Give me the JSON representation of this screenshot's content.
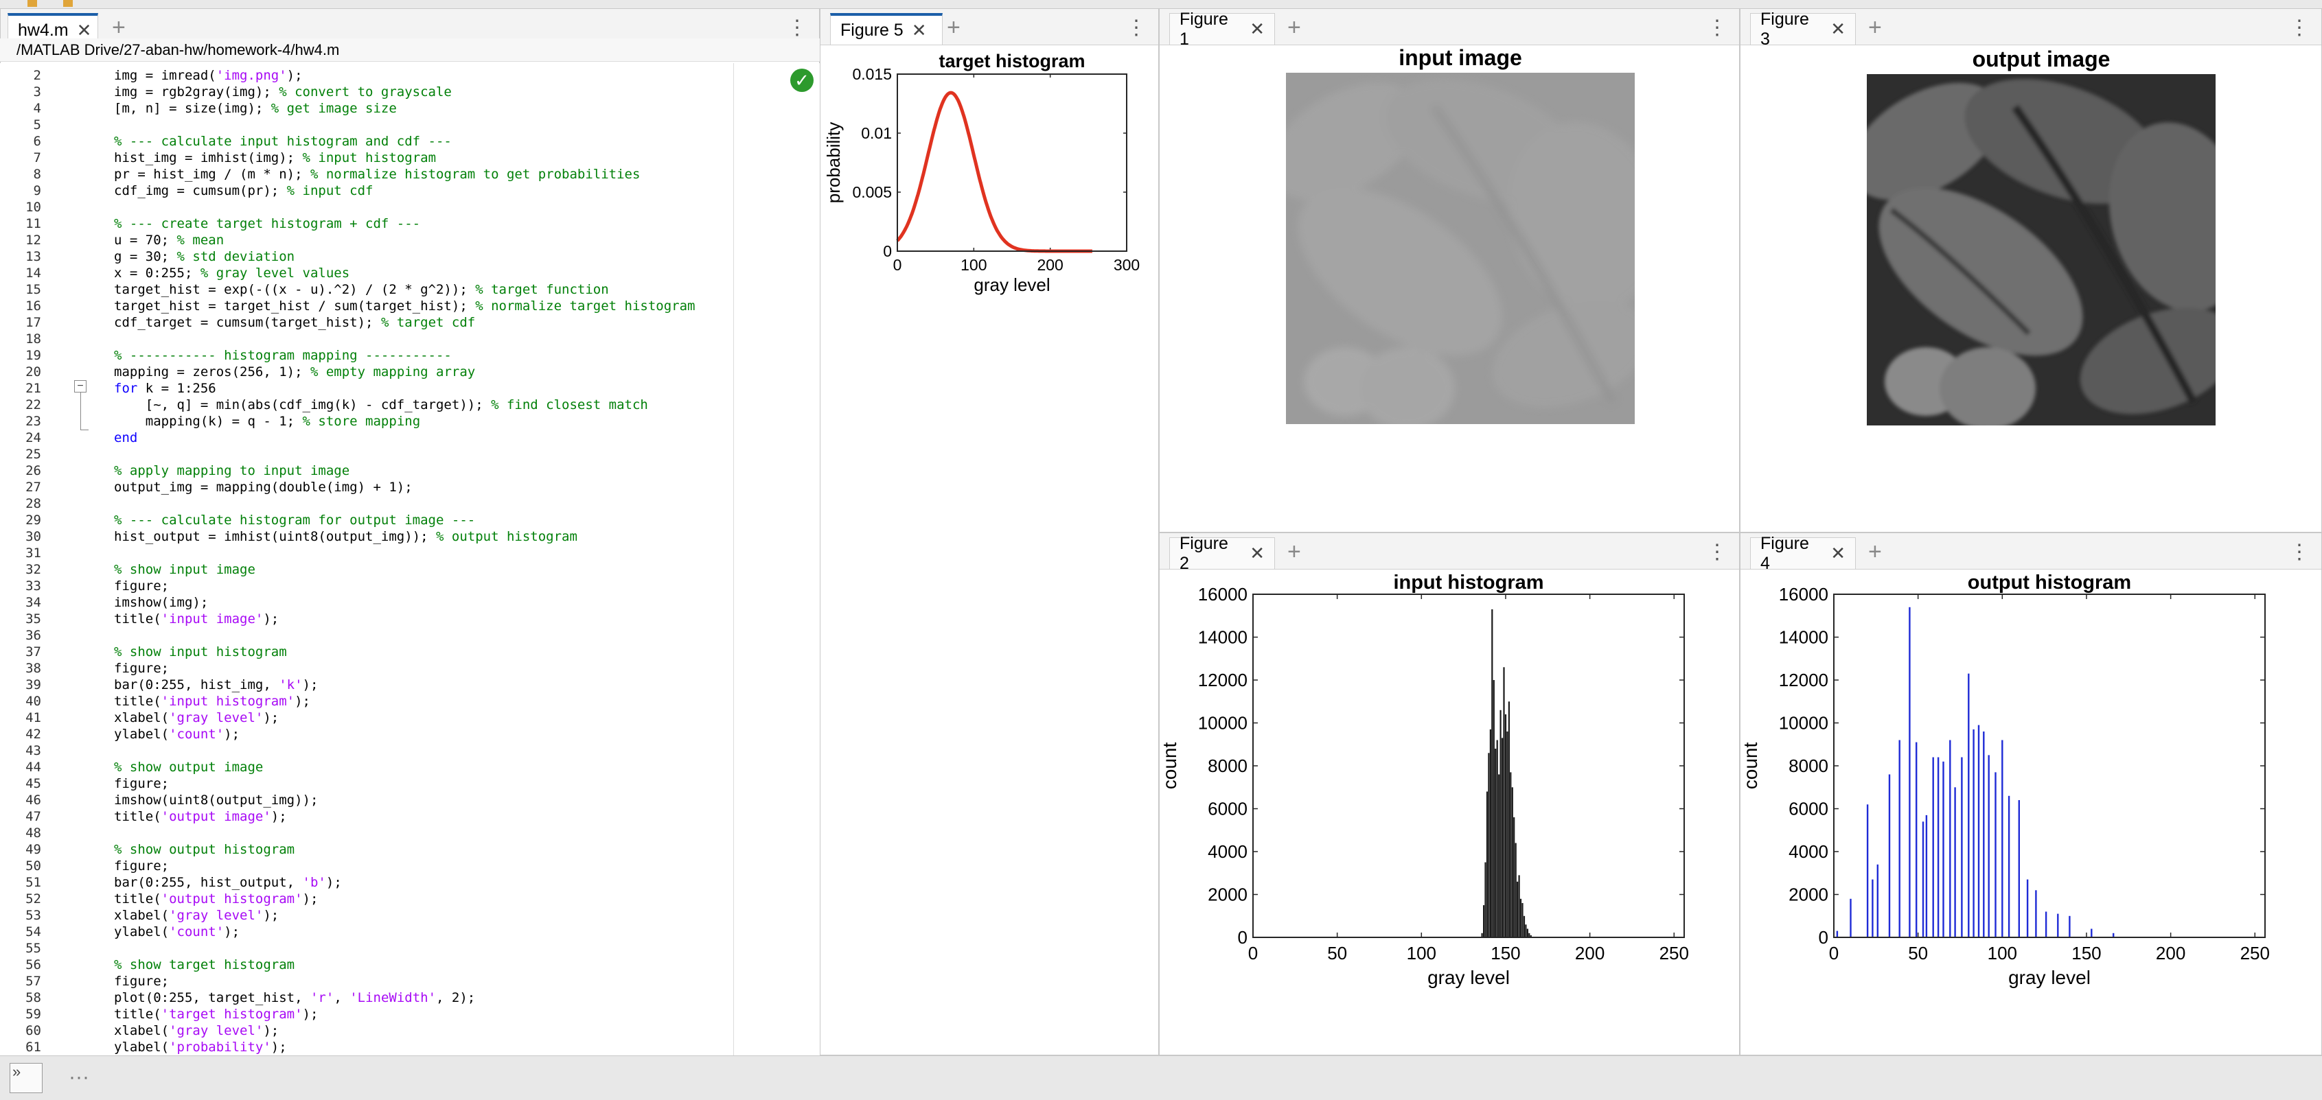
{
  "editor": {
    "tab_label": "hw4.m",
    "breadcrumb": "/MATLAB Drive/27-aban-hw/homework-4/hw4.m",
    "start_line": 2,
    "lines": [
      [
        [
          "n",
          "img = imread("
        ],
        [
          "s",
          "'img.png'"
        ],
        [
          "n",
          ");"
        ]
      ],
      [
        [
          "n",
          "img = rgb2gray(img); "
        ],
        [
          "c",
          "% convert to grayscale"
        ]
      ],
      [
        [
          "n",
          "[m, n] = size(img); "
        ],
        [
          "c",
          "% get image size"
        ]
      ],
      [],
      [
        [
          "c",
          "% --- calculate input histogram and cdf ---"
        ]
      ],
      [
        [
          "n",
          "hist_img = imhist(img); "
        ],
        [
          "c",
          "% input histogram"
        ]
      ],
      [
        [
          "n",
          "pr = hist_img / (m * n); "
        ],
        [
          "c",
          "% normalize histogram to get probabilities"
        ]
      ],
      [
        [
          "n",
          "cdf_img = cumsum(pr); "
        ],
        [
          "c",
          "% input cdf"
        ]
      ],
      [],
      [
        [
          "c",
          "% --- create target histogram + cdf ---"
        ]
      ],
      [
        [
          "n",
          "u = 70; "
        ],
        [
          "c",
          "% mean"
        ]
      ],
      [
        [
          "n",
          "g = 30; "
        ],
        [
          "c",
          "% std deviation"
        ]
      ],
      [
        [
          "n",
          "x = 0:255; "
        ],
        [
          "c",
          "% gray level values"
        ]
      ],
      [
        [
          "n",
          "target_hist = exp(-((x - u).^2) / (2 * g^2)); "
        ],
        [
          "c",
          "% target function"
        ]
      ],
      [
        [
          "n",
          "target_hist = target_hist / sum(target_hist); "
        ],
        [
          "c",
          "% normalize target histogram"
        ]
      ],
      [
        [
          "n",
          "cdf_target = cumsum(target_hist); "
        ],
        [
          "c",
          "% target cdf"
        ]
      ],
      [],
      [
        [
          "c",
          "% ----------- histogram mapping -----------"
        ]
      ],
      [
        [
          "n",
          "mapping = zeros(256, 1); "
        ],
        [
          "c",
          "% empty mapping array"
        ]
      ],
      [
        [
          "k",
          "for"
        ],
        [
          "n",
          " k = 1:256"
        ]
      ],
      [
        [
          "n",
          "    [~, q] = min(abs(cdf_img(k) - cdf_target)); "
        ],
        [
          "c",
          "% find closest match"
        ]
      ],
      [
        [
          "n",
          "    mapping(k) = q - 1; "
        ],
        [
          "c",
          "% store mapping"
        ]
      ],
      [
        [
          "k",
          "end"
        ]
      ],
      [],
      [
        [
          "c",
          "% apply mapping to input image"
        ]
      ],
      [
        [
          "n",
          "output_img = mapping(double(img) + 1);"
        ]
      ],
      [],
      [
        [
          "c",
          "% --- calculate histogram for output image ---"
        ]
      ],
      [
        [
          "n",
          "hist_output = imhist(uint8(output_img)); "
        ],
        [
          "c",
          "% output histogram"
        ]
      ],
      [],
      [
        [
          "c",
          "% show input image"
        ]
      ],
      [
        [
          "n",
          "figure;"
        ]
      ],
      [
        [
          "n",
          "imshow(img);"
        ]
      ],
      [
        [
          "n",
          "title("
        ],
        [
          "s",
          "'input image'"
        ],
        [
          "n",
          ");"
        ]
      ],
      [],
      [
        [
          "c",
          "% show input histogram"
        ]
      ],
      [
        [
          "n",
          "figure;"
        ]
      ],
      [
        [
          "n",
          "bar(0:255, hist_img, "
        ],
        [
          "s",
          "'k'"
        ],
        [
          "n",
          ");"
        ]
      ],
      [
        [
          "n",
          "title("
        ],
        [
          "s",
          "'input histogram'"
        ],
        [
          "n",
          ");"
        ]
      ],
      [
        [
          "n",
          "xlabel("
        ],
        [
          "s",
          "'gray level'"
        ],
        [
          "n",
          ");"
        ]
      ],
      [
        [
          "n",
          "ylabel("
        ],
        [
          "s",
          "'count'"
        ],
        [
          "n",
          ");"
        ]
      ],
      [],
      [
        [
          "c",
          "% show output image"
        ]
      ],
      [
        [
          "n",
          "figure;"
        ]
      ],
      [
        [
          "n",
          "imshow(uint8(output_img));"
        ]
      ],
      [
        [
          "n",
          "title("
        ],
        [
          "s",
          "'output image'"
        ],
        [
          "n",
          ");"
        ]
      ],
      [],
      [
        [
          "c",
          "% show output histogram"
        ]
      ],
      [
        [
          "n",
          "figure;"
        ]
      ],
      [
        [
          "n",
          "bar(0:255, hist_output, "
        ],
        [
          "s",
          "'b'"
        ],
        [
          "n",
          ");"
        ]
      ],
      [
        [
          "n",
          "title("
        ],
        [
          "s",
          "'output histogram'"
        ],
        [
          "n",
          ");"
        ]
      ],
      [
        [
          "n",
          "xlabel("
        ],
        [
          "s",
          "'gray level'"
        ],
        [
          "n",
          ");"
        ]
      ],
      [
        [
          "n",
          "ylabel("
        ],
        [
          "s",
          "'count'"
        ],
        [
          "n",
          ");"
        ]
      ],
      [],
      [
        [
          "c",
          "% show target histogram"
        ]
      ],
      [
        [
          "n",
          "figure;"
        ]
      ],
      [
        [
          "n",
          "plot(0:255, target_hist, "
        ],
        [
          "s",
          "'r'"
        ],
        [
          "n",
          ", "
        ],
        [
          "s",
          "'LineWidth'"
        ],
        [
          "n",
          ", 2);"
        ]
      ],
      [
        [
          "n",
          "title("
        ],
        [
          "s",
          "'target histogram'"
        ],
        [
          "n",
          ");"
        ]
      ],
      [
        [
          "n",
          "xlabel("
        ],
        [
          "s",
          "'gray level'"
        ],
        [
          "n",
          ");"
        ]
      ],
      [
        [
          "n",
          "ylabel("
        ],
        [
          "s",
          "'probability'"
        ],
        [
          "n",
          ");"
        ]
      ]
    ]
  },
  "figures": {
    "fig5": {
      "tab_label": "Figure 5"
    },
    "fig1": {
      "tab_label": "Figure 1"
    },
    "fig3": {
      "tab_label": "Figure 3"
    },
    "fig2": {
      "tab_label": "Figure 2"
    },
    "fig4": {
      "tab_label": "Figure 4"
    }
  },
  "images": {
    "input_title": "input image",
    "output_title": "output image"
  },
  "colors": {
    "target_line": "#e03320",
    "input_bars": "#1a1a1a",
    "output_bars": "#1f2bd6",
    "comment": "#028009",
    "keyword": "#0e00ff",
    "string": "#a709f5"
  },
  "chart_data": [
    {
      "id": "target",
      "type": "line",
      "title": "target histogram",
      "xlabel": "gray level",
      "ylabel": "probability",
      "xlim": [
        0,
        300
      ],
      "ylim": [
        0,
        0.015
      ],
      "xticks": [
        0,
        100,
        200,
        300
      ],
      "yticks": [
        0,
        0.005,
        0.01,
        0.015
      ],
      "ytick_labels": [
        "0",
        "0.005",
        "0.01",
        "0.015"
      ],
      "gaussian": {
        "mean": 70,
        "std": 30,
        "x_start": 0,
        "x_end": 255
      }
    },
    {
      "id": "input_hist",
      "type": "bar",
      "title": "input histogram",
      "xlabel": "gray level",
      "ylabel": "count",
      "xlim": [
        0,
        256
      ],
      "ylim": [
        0,
        16000
      ],
      "xticks": [
        0,
        50,
        100,
        150,
        200,
        250
      ],
      "yticks": [
        0,
        2000,
        4000,
        6000,
        8000,
        10000,
        12000,
        14000,
        16000
      ],
      "x": [
        136,
        137,
        138,
        139,
        140,
        141,
        142,
        143,
        144,
        145,
        146,
        147,
        148,
        149,
        150,
        151,
        152,
        153,
        154,
        155,
        156,
        157,
        158,
        159,
        160,
        161,
        162,
        163,
        164,
        165
      ],
      "values": [
        200,
        1500,
        3500,
        6800,
        8600,
        9700,
        15300,
        12000,
        8800,
        9200,
        7600,
        10600,
        9300,
        12600,
        10400,
        9600,
        11000,
        7700,
        7000,
        5600,
        4400,
        2600,
        2900,
        1800,
        1600,
        1000,
        600,
        400,
        200,
        100
      ]
    },
    {
      "id": "output_hist",
      "type": "bar",
      "title": "output histogram",
      "xlabel": "gray level",
      "ylabel": "count",
      "xlim": [
        0,
        256
      ],
      "ylim": [
        0,
        16000
      ],
      "xticks": [
        0,
        50,
        100,
        150,
        200,
        250
      ],
      "yticks": [
        0,
        2000,
        4000,
        6000,
        8000,
        10000,
        12000,
        14000,
        16000
      ],
      "x": [
        2,
        10,
        20,
        23,
        26,
        33,
        39,
        45,
        49,
        53,
        55,
        59,
        62,
        65,
        69,
        72,
        76,
        80,
        83,
        86,
        89,
        92,
        96,
        100,
        104,
        110,
        115,
        120,
        126,
        133,
        140,
        153,
        166
      ],
      "values": [
        300,
        1800,
        6200,
        2700,
        3400,
        7600,
        9200,
        15400,
        9100,
        5400,
        5700,
        8400,
        8400,
        8200,
        9200,
        7000,
        8400,
        12300,
        9700,
        9900,
        9600,
        8500,
        7700,
        9200,
        6600,
        6400,
        2700,
        2200,
        1200,
        1100,
        1000,
        400,
        200
      ]
    }
  ]
}
